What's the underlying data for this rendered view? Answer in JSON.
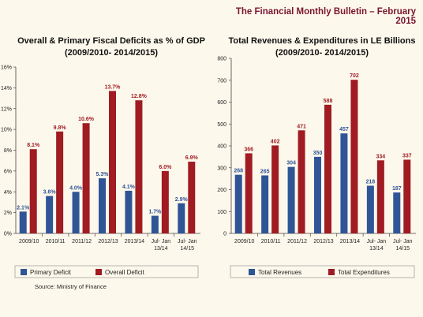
{
  "header": {
    "title": "The Financial Monthly Bulletin – February 2015"
  },
  "source": "Source: Ministry of Finance",
  "colors": {
    "primary": "#2f5597",
    "overall": "#a01c22",
    "background": "#fdf8ec",
    "title": "#7a1530"
  },
  "chart_data": [
    {
      "type": "bar",
      "title_line1": "Overall & Primary Fiscal Deficits as % of GDP",
      "title_line2": "(2009/2010- 2014/2015)",
      "categories": [
        [
          "2009/10"
        ],
        [
          "2010/11"
        ],
        [
          "2011/12"
        ],
        [
          "2012/13"
        ],
        [
          "2013/14"
        ],
        [
          "Jul- Jan",
          "13/14"
        ],
        [
          "Jul- Jan",
          "14/15"
        ]
      ],
      "series": [
        {
          "name": "Primary Deficit",
          "values": [
            2.1,
            3.6,
            4.0,
            5.3,
            4.1,
            1.7,
            2.9
          ],
          "labels": [
            "2.1%",
            "3.6%",
            "4.0%",
            "5.3%",
            "4.1%",
            "1.7%",
            "2.9%"
          ]
        },
        {
          "name": "Overall Deficit",
          "values": [
            8.1,
            9.8,
            10.6,
            13.7,
            12.8,
            6.0,
            6.9
          ],
          "labels": [
            "8.1%",
            "9.8%",
            "10.6%",
            "13.7%",
            "12.8%",
            "6.0%",
            "6.9%"
          ]
        }
      ],
      "ylim": [
        0,
        16
      ],
      "yticks": [
        "0%",
        "2%",
        "4%",
        "6%",
        "8%",
        "10%",
        "12%",
        "14%",
        "16%"
      ],
      "grid": false,
      "legend": "bottom"
    },
    {
      "type": "bar",
      "title_line1": "Total Revenues & Expenditures  in LE Billions",
      "title_line2": "(2009/2010- 2014/2015)",
      "categories": [
        [
          "2009/10"
        ],
        [
          "2010/11"
        ],
        [
          "2011/12"
        ],
        [
          "2012/13"
        ],
        [
          "2013/14"
        ],
        [
          "Jul- Jan",
          "13/14"
        ],
        [
          "Jul- Jan",
          "14/15"
        ]
      ],
      "series": [
        {
          "name": "Total Revenues",
          "values": [
            268,
            265,
            304,
            350,
            457,
            218,
            187
          ],
          "labels": [
            "268",
            "265",
            "304",
            "350",
            "457",
            "218",
            "187"
          ]
        },
        {
          "name": "Total Expenditures",
          "values": [
            366,
            402,
            471,
            588,
            702,
            334,
            337
          ],
          "labels": [
            "366",
            "402",
            "471",
            "588",
            "702",
            "334",
            "337"
          ]
        }
      ],
      "ylim": [
        0,
        800
      ],
      "yticks": [
        "0",
        "100",
        "200",
        "300",
        "400",
        "500",
        "600",
        "700",
        "800"
      ],
      "grid": false,
      "legend": "bottom"
    }
  ]
}
